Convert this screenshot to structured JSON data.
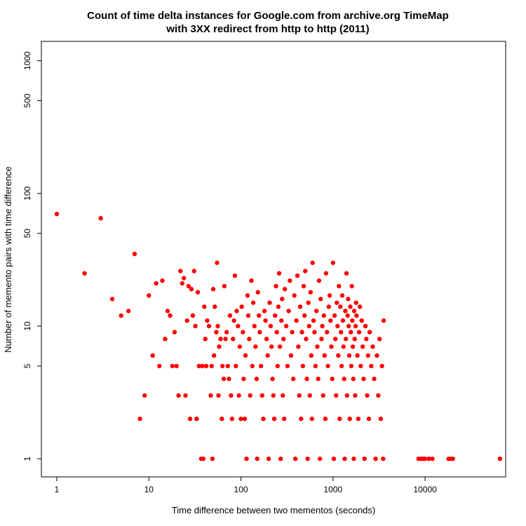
{
  "chart_data": {
    "type": "scatter",
    "title": "Count of time delta instances for Google.com from archive.org TimeMap",
    "subtitle": "with 3XX redirect from http to http (2011)",
    "xlabel": "Time difference between two mementos (seconds)",
    "ylabel": "Number of memento pairs with time difference",
    "x_scale": "log",
    "y_scale": "log",
    "xlim": [
      0.68,
      75000
    ],
    "ylim": [
      0.73,
      1400
    ],
    "x_ticks": [
      1,
      10,
      100,
      1000,
      10000
    ],
    "x_tick_labels": [
      "1",
      "10",
      "100",
      "1000",
      "10000"
    ],
    "y_ticks": [
      1,
      5,
      10,
      50,
      100,
      500,
      1000
    ],
    "y_tick_labels": [
      "1",
      "5",
      "10",
      "50",
      "100",
      "500",
      "1000"
    ],
    "grid": false,
    "legend": "none",
    "point_color": "#ff0000",
    "points": [
      [
        1,
        70
      ],
      [
        2,
        25
      ],
      [
        3,
        65
      ],
      [
        4,
        16
      ],
      [
        5,
        12
      ],
      [
        6,
        13
      ],
      [
        7,
        35
      ],
      [
        8,
        2
      ],
      [
        9,
        3
      ],
      [
        10,
        17
      ],
      [
        11,
        6
      ],
      [
        12,
        21
      ],
      [
        13,
        5
      ],
      [
        14,
        22
      ],
      [
        15,
        8
      ],
      [
        16,
        13
      ],
      [
        17,
        12
      ],
      [
        18,
        5
      ],
      [
        19,
        9
      ],
      [
        20,
        5
      ],
      [
        21,
        3
      ],
      [
        22,
        26
      ],
      [
        23,
        21
      ],
      [
        24,
        23
      ],
      [
        25,
        3
      ],
      [
        26,
        11
      ],
      [
        27,
        20
      ],
      [
        28,
        2
      ],
      [
        29,
        19
      ],
      [
        30,
        12
      ],
      [
        31,
        26
      ],
      [
        32,
        10
      ],
      [
        33,
        2
      ],
      [
        34,
        18
      ],
      [
        35,
        5
      ],
      [
        37,
        1
      ],
      [
        38,
        5
      ],
      [
        39,
        1
      ],
      [
        40,
        14
      ],
      [
        41,
        8
      ],
      [
        42,
        5
      ],
      [
        43,
        11
      ],
      [
        45,
        10
      ],
      [
        47,
        3
      ],
      [
        48,
        5
      ],
      [
        49,
        1
      ],
      [
        50,
        19
      ],
      [
        51,
        6
      ],
      [
        52,
        14
      ],
      [
        54,
        9
      ],
      [
        55,
        30
      ],
      [
        56,
        10
      ],
      [
        57,
        3
      ],
      [
        58,
        7
      ],
      [
        60,
        8
      ],
      [
        62,
        2
      ],
      [
        63,
        5
      ],
      [
        65,
        4
      ],
      [
        66,
        20
      ],
      [
        68,
        8
      ],
      [
        70,
        9
      ],
      [
        72,
        5
      ],
      [
        74,
        4
      ],
      [
        76,
        12
      ],
      [
        78,
        3
      ],
      [
        80,
        2
      ],
      [
        82,
        8
      ],
      [
        84,
        11
      ],
      [
        86,
        24
      ],
      [
        88,
        5
      ],
      [
        90,
        13
      ],
      [
        93,
        10
      ],
      [
        95,
        3
      ],
      [
        97,
        7
      ],
      [
        100,
        2
      ],
      [
        102,
        14
      ],
      [
        105,
        9
      ],
      [
        107,
        4
      ],
      [
        110,
        2
      ],
      [
        112,
        6
      ],
      [
        115,
        1
      ],
      [
        118,
        17
      ],
      [
        120,
        12
      ],
      [
        123,
        8
      ],
      [
        126,
        3
      ],
      [
        130,
        22
      ],
      [
        133,
        5
      ],
      [
        136,
        15
      ],
      [
        140,
        10
      ],
      [
        144,
        7
      ],
      [
        148,
        4
      ],
      [
        150,
        1
      ],
      [
        153,
        18
      ],
      [
        157,
        12
      ],
      [
        160,
        9
      ],
      [
        165,
        5
      ],
      [
        170,
        3
      ],
      [
        175,
        2
      ],
      [
        180,
        13
      ],
      [
        185,
        11
      ],
      [
        190,
        8
      ],
      [
        195,
        6
      ],
      [
        200,
        1
      ],
      [
        205,
        15
      ],
      [
        210,
        10
      ],
      [
        215,
        7
      ],
      [
        220,
        4
      ],
      [
        225,
        3
      ],
      [
        230,
        2
      ],
      [
        235,
        12
      ],
      [
        240,
        20
      ],
      [
        245,
        9
      ],
      [
        250,
        5
      ],
      [
        255,
        14
      ],
      [
        260,
        25
      ],
      [
        265,
        7
      ],
      [
        270,
        1
      ],
      [
        275,
        11
      ],
      [
        280,
        16
      ],
      [
        285,
        3
      ],
      [
        290,
        8
      ],
      [
        295,
        2
      ],
      [
        300,
        19
      ],
      [
        310,
        10
      ],
      [
        320,
        5
      ],
      [
        330,
        13
      ],
      [
        340,
        22
      ],
      [
        350,
        6
      ],
      [
        360,
        9
      ],
      [
        370,
        4
      ],
      [
        380,
        17
      ],
      [
        390,
        1
      ],
      [
        400,
        11
      ],
      [
        410,
        24
      ],
      [
        420,
        7
      ],
      [
        430,
        3
      ],
      [
        440,
        14
      ],
      [
        450,
        2
      ],
      [
        460,
        9
      ],
      [
        470,
        5
      ],
      [
        480,
        20
      ],
      [
        490,
        12
      ],
      [
        500,
        26
      ],
      [
        510,
        8
      ],
      [
        520,
        4
      ],
      [
        530,
        1
      ],
      [
        540,
        15
      ],
      [
        550,
        10
      ],
      [
        560,
        3
      ],
      [
        570,
        18
      ],
      [
        580,
        6
      ],
      [
        590,
        2
      ],
      [
        600,
        30
      ],
      [
        615,
        11
      ],
      [
        630,
        9
      ],
      [
        645,
        5
      ],
      [
        660,
        13
      ],
      [
        675,
        7
      ],
      [
        690,
        4
      ],
      [
        705,
        22
      ],
      [
        720,
        1
      ],
      [
        735,
        16
      ],
      [
        750,
        8
      ],
      [
        765,
        10
      ],
      [
        780,
        3
      ],
      [
        795,
        12
      ],
      [
        810,
        6
      ],
      [
        825,
        2
      ],
      [
        840,
        25
      ],
      [
        860,
        9
      ],
      [
        880,
        5
      ],
      [
        900,
        14
      ],
      [
        920,
        17
      ],
      [
        940,
        11
      ],
      [
        960,
        7
      ],
      [
        980,
        4
      ],
      [
        1000,
        30
      ],
      [
        1020,
        1
      ],
      [
        1040,
        12
      ],
      [
        1060,
        8
      ],
      [
        1080,
        3
      ],
      [
        1100,
        15
      ],
      [
        1120,
        10
      ],
      [
        1140,
        6
      ],
      [
        1160,
        20
      ],
      [
        1180,
        2
      ],
      [
        1200,
        14
      ],
      [
        1220,
        9
      ],
      [
        1240,
        5
      ],
      [
        1260,
        17
      ],
      [
        1280,
        11
      ],
      [
        1300,
        7
      ],
      [
        1320,
        4
      ],
      [
        1340,
        1
      ],
      [
        1360,
        13
      ],
      [
        1380,
        8
      ],
      [
        1400,
        25
      ],
      [
        1420,
        3
      ],
      [
        1440,
        12
      ],
      [
        1460,
        16
      ],
      [
        1480,
        10
      ],
      [
        1500,
        6
      ],
      [
        1520,
        2
      ],
      [
        1540,
        14
      ],
      [
        1560,
        9
      ],
      [
        1580,
        5
      ],
      [
        1600,
        20
      ],
      [
        1620,
        11
      ],
      [
        1640,
        7
      ],
      [
        1660,
        4
      ],
      [
        1680,
        1
      ],
      [
        1700,
        13
      ],
      [
        1720,
        8
      ],
      [
        1740,
        3
      ],
      [
        1760,
        10
      ],
      [
        1780,
        15
      ],
      [
        1800,
        12
      ],
      [
        1840,
        6
      ],
      [
        1880,
        2
      ],
      [
        1920,
        9
      ],
      [
        1960,
        14
      ],
      [
        2000,
        5
      ],
      [
        2050,
        11
      ],
      [
        2100,
        7
      ],
      [
        2150,
        4
      ],
      [
        2200,
        1
      ],
      [
        2250,
        10
      ],
      [
        2300,
        8
      ],
      [
        2350,
        3
      ],
      [
        2400,
        6
      ],
      [
        2450,
        2
      ],
      [
        2500,
        9
      ],
      [
        2600,
        5
      ],
      [
        2700,
        7
      ],
      [
        2800,
        4
      ],
      [
        2900,
        1
      ],
      [
        3000,
        6
      ],
      [
        3100,
        3
      ],
      [
        3200,
        8
      ],
      [
        3300,
        2
      ],
      [
        3400,
        5
      ],
      [
        3500,
        1
      ],
      [
        3550,
        11
      ],
      [
        8500,
        1
      ],
      [
        9000,
        1
      ],
      [
        9500,
        1
      ],
      [
        10000,
        1
      ],
      [
        11000,
        1
      ],
      [
        12000,
        1
      ],
      [
        18000,
        1
      ],
      [
        19000,
        1
      ],
      [
        20000,
        1
      ],
      [
        65000,
        1
      ]
    ]
  }
}
